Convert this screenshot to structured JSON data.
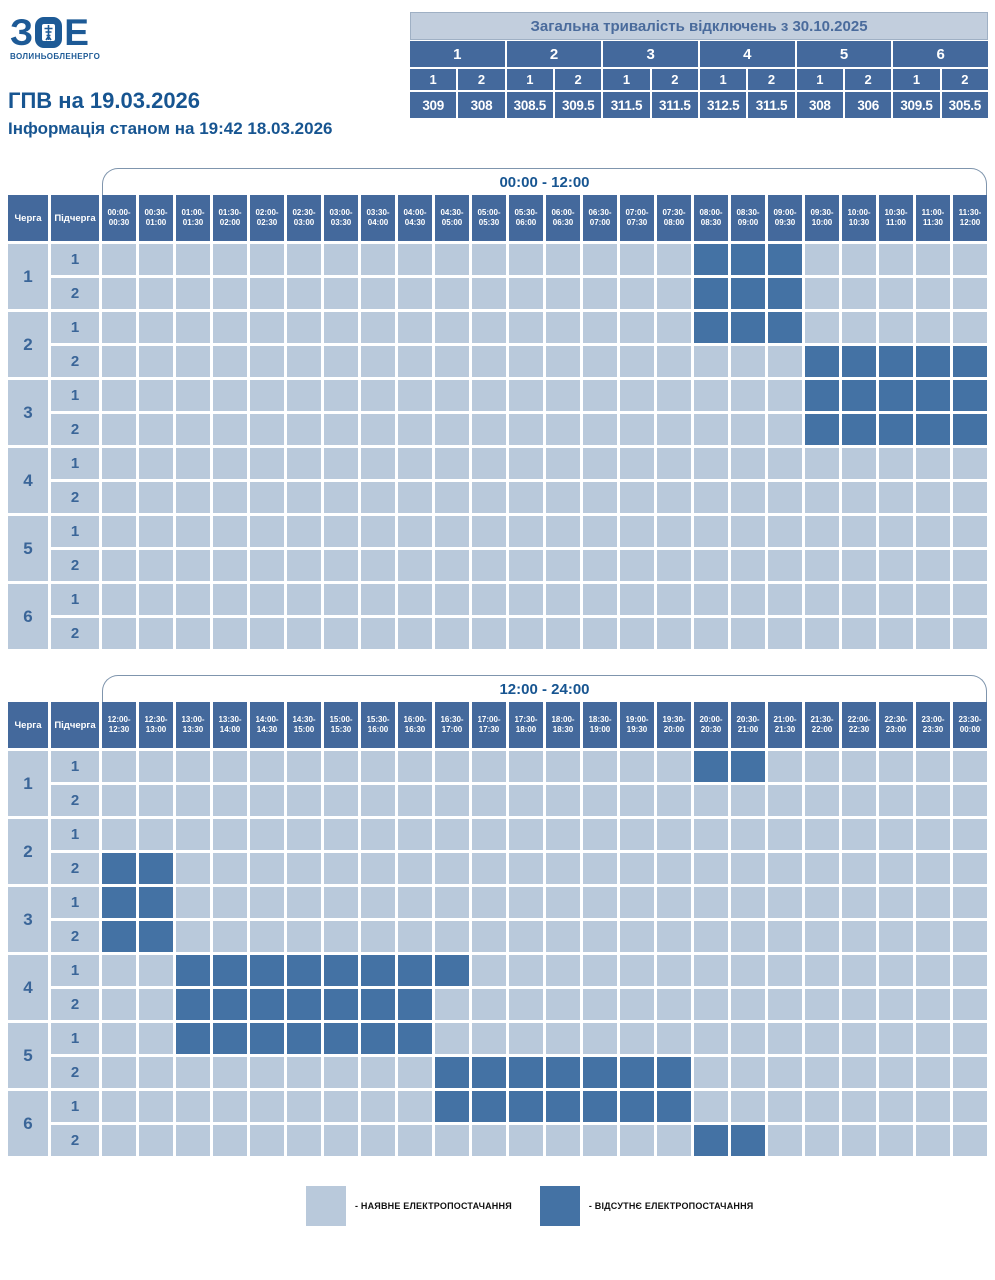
{
  "brand": {
    "logo_z": "З",
    "logo_e": "Е",
    "company": "ВОЛИНЬОБЛЕНЕРГО"
  },
  "header": {
    "title": "ГПВ на 19.03.2026",
    "subtitle": "Інформація станом на 19:42 18.03.2026"
  },
  "totals": {
    "title": "Загальна тривалість відключень з 30.10.2025",
    "queues": [
      "1",
      "2",
      "3",
      "4",
      "5",
      "6"
    ],
    "sub_headers": [
      "1",
      "2",
      "1",
      "2",
      "1",
      "2",
      "1",
      "2",
      "1",
      "2",
      "1",
      "2"
    ],
    "values": [
      "309",
      "308",
      "308.5",
      "309.5",
      "311.5",
      "311.5",
      "312.5",
      "311.5",
      "308",
      "306",
      "309.5",
      "305.5"
    ]
  },
  "schedule": {
    "queue_header": "Черга",
    "subqueue_header": "Підчерга",
    "tables": [
      {
        "range_label": "00:00 - 12:00",
        "slots": [
          "00:00-00:30",
          "00:30-01:00",
          "01:00-01:30",
          "01:30-02:00",
          "02:00-02:30",
          "02:30-03:00",
          "03:00-03:30",
          "03:30-04:00",
          "04:00-04:30",
          "04:30-05:00",
          "05:00-05:30",
          "05:30-06:00",
          "06:00-06:30",
          "06:30-07:00",
          "07:00-07:30",
          "07:30-08:00",
          "08:00-08:30",
          "08:30-09:00",
          "09:00-09:30",
          "09:30-10:00",
          "10:00-10:30",
          "10:30-11:00",
          "11:00-11:30",
          "11:30-12:00"
        ],
        "rows": [
          {
            "queue": "1",
            "sub": "1",
            "off": [
              16,
              17,
              18
            ]
          },
          {
            "queue": "1",
            "sub": "2",
            "off": [
              16,
              17,
              18
            ]
          },
          {
            "queue": "2",
            "sub": "1",
            "off": [
              16,
              17,
              18
            ]
          },
          {
            "queue": "2",
            "sub": "2",
            "off": [
              19,
              20,
              21,
              22,
              23
            ]
          },
          {
            "queue": "3",
            "sub": "1",
            "off": [
              19,
              20,
              21,
              22,
              23
            ]
          },
          {
            "queue": "3",
            "sub": "2",
            "off": [
              19,
              20,
              21,
              22,
              23
            ]
          },
          {
            "queue": "4",
            "sub": "1",
            "off": []
          },
          {
            "queue": "4",
            "sub": "2",
            "off": []
          },
          {
            "queue": "5",
            "sub": "1",
            "off": []
          },
          {
            "queue": "5",
            "sub": "2",
            "off": []
          },
          {
            "queue": "6",
            "sub": "1",
            "off": []
          },
          {
            "queue": "6",
            "sub": "2",
            "off": []
          }
        ]
      },
      {
        "range_label": "12:00 - 24:00",
        "slots": [
          "12:00-12:30",
          "12:30-13:00",
          "13:00-13:30",
          "13:30-14:00",
          "14:00-14:30",
          "14:30-15:00",
          "15:00-15:30",
          "15:30-16:00",
          "16:00-16:30",
          "16:30-17:00",
          "17:00-17:30",
          "17:30-18:00",
          "18:00-18:30",
          "18:30-19:00",
          "19:00-19:30",
          "19:30-20:00",
          "20:00-20:30",
          "20:30-21:00",
          "21:00-21:30",
          "21:30-22:00",
          "22:00-22:30",
          "22:30-23:00",
          "23:00-23:30",
          "23:30-00:00"
        ],
        "rows": [
          {
            "queue": "1",
            "sub": "1",
            "off": [
              16,
              17
            ]
          },
          {
            "queue": "1",
            "sub": "2",
            "off": []
          },
          {
            "queue": "2",
            "sub": "1",
            "off": []
          },
          {
            "queue": "2",
            "sub": "2",
            "off": [
              0,
              1
            ]
          },
          {
            "queue": "3",
            "sub": "1",
            "off": [
              0,
              1
            ]
          },
          {
            "queue": "3",
            "sub": "2",
            "off": [
              0,
              1
            ]
          },
          {
            "queue": "4",
            "sub": "1",
            "off": [
              2,
              3,
              4,
              5,
              6,
              7,
              8,
              9
            ]
          },
          {
            "queue": "4",
            "sub": "2",
            "off": [
              2,
              3,
              4,
              5,
              6,
              7,
              8
            ]
          },
          {
            "queue": "5",
            "sub": "1",
            "off": [
              2,
              3,
              4,
              5,
              6,
              7,
              8
            ]
          },
          {
            "queue": "5",
            "sub": "2",
            "off": [
              9,
              10,
              11,
              12,
              13,
              14,
              15
            ]
          },
          {
            "queue": "6",
            "sub": "1",
            "off": [
              9,
              10,
              11,
              12,
              13,
              14,
              15
            ]
          },
          {
            "queue": "6",
            "sub": "2",
            "off": [
              16,
              17
            ]
          }
        ]
      }
    ]
  },
  "legend": {
    "on_label": "- НАЯВНЕ ЕЛЕКТРОПОСТАЧАННЯ",
    "off_label": "- ВІДСУТНЄ ЕЛЕКТРОПОСТАЧАННЯ"
  },
  "colors": {
    "on": "#b9c9db",
    "off": "#4472a4",
    "header": "#44699c",
    "accent": "#175591"
  },
  "chart_data": {
    "type": "heatmap",
    "title": "ГПВ на 19.03.2026",
    "subtitle": "Інформація станом на 19:42 18.03.2026",
    "x_ranges": [
      "00:00 - 12:00",
      "12:00 - 24:00"
    ],
    "cell_states": [
      "наявне електропостачання",
      "відсутнє електропостачання"
    ],
    "outage_intervals": {
      "1.1": [
        "08:00-09:30",
        "20:00-21:00"
      ],
      "1.2": [
        "08:00-09:30"
      ],
      "2.1": [
        "08:00-09:30"
      ],
      "2.2": [
        "09:30-13:00"
      ],
      "3.1": [
        "09:30-13:00"
      ],
      "3.2": [
        "09:30-13:00"
      ],
      "4.1": [
        "13:00-17:00"
      ],
      "4.2": [
        "13:00-16:30"
      ],
      "5.1": [
        "13:00-16:30"
      ],
      "5.2": [
        "16:30-20:00"
      ],
      "6.1": [
        "16:30-20:00"
      ],
      "6.2": [
        "20:00-21:00"
      ]
    },
    "total_outage_hours_since_30_10_2025": {
      "1.1": 309,
      "1.2": 308,
      "2.1": 308.5,
      "2.2": 309.5,
      "3.1": 311.5,
      "3.2": 311.5,
      "4.1": 312.5,
      "4.2": 311.5,
      "5.1": 308,
      "5.2": 306,
      "6.1": 309.5,
      "6.2": 305.5
    }
  }
}
